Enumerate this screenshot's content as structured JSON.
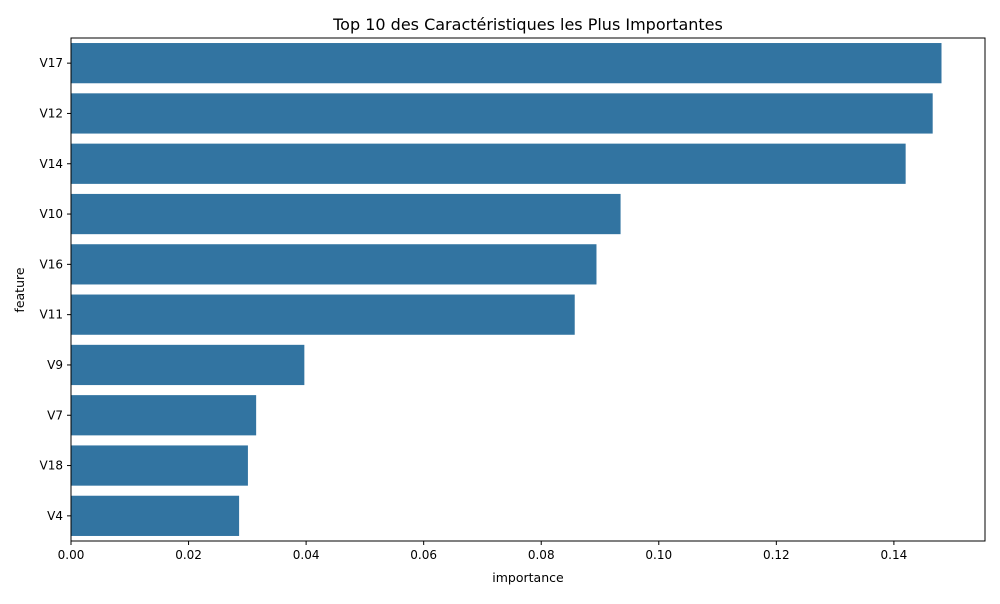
{
  "chart_data": {
    "type": "bar",
    "orientation": "horizontal",
    "title": "Top 10 des Caractéristiques les Plus Importantes",
    "xlabel": "importance",
    "ylabel": "feature",
    "categories": [
      "V17",
      "V12",
      "V14",
      "V10",
      "V16",
      "V11",
      "V9",
      "V7",
      "V18",
      "V4"
    ],
    "values": [
      0.1481,
      0.1466,
      0.142,
      0.0935,
      0.0894,
      0.0857,
      0.0397,
      0.0315,
      0.0301,
      0.0286
    ],
    "xlim": [
      0,
      0.1555
    ],
    "xticks": [
      "0.00",
      "0.02",
      "0.04",
      "0.06",
      "0.08",
      "0.10",
      "0.12",
      "0.14"
    ],
    "grid": false,
    "legend": "none",
    "bar_color": "#3274a1"
  }
}
